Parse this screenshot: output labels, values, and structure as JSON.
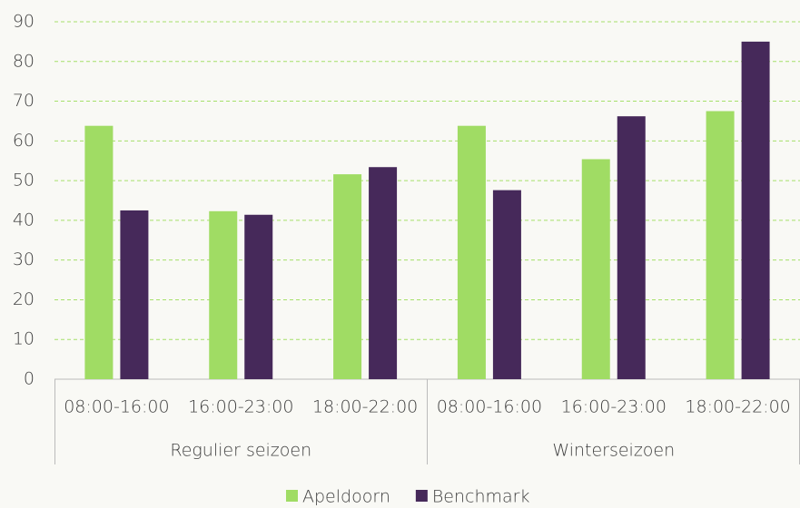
{
  "chart_data": {
    "type": "bar",
    "groups": [
      {
        "name": "Regulier seizoen",
        "categories": [
          "08:00-16:00",
          "16:00-23:00",
          "18:00-22:00"
        ]
      },
      {
        "name": "Winterseizoen",
        "categories": [
          "08:00-16:00",
          "16:00-23:00",
          "18:00-22:00"
        ]
      }
    ],
    "series": [
      {
        "name": "Apeldoorn",
        "color": "#a0dc64",
        "values": [
          63.8,
          42.3,
          51.6,
          63.8,
          55.4,
          67.5
        ]
      },
      {
        "name": "Benchmark",
        "color": "#46295a",
        "values": [
          42.5,
          41.4,
          53.4,
          47.6,
          66.2,
          85
        ]
      }
    ],
    "ylim": [
      0,
      90
    ],
    "yticks": [
      0,
      10,
      20,
      30,
      40,
      50,
      60,
      70,
      80,
      90
    ],
    "grid": true,
    "legend": "bottom"
  }
}
